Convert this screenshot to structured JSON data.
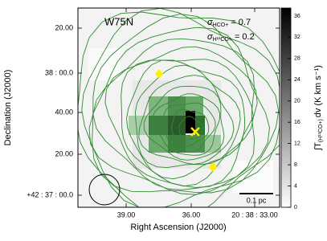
{
  "panel": {
    "label": "W75N",
    "sigma_lines": [
      [
        "σ",
        "HCO+",
        "= 0.7"
      ],
      [
        "σ",
        "H¹³CO+",
        "= 0.2"
      ]
    ],
    "scale_bar": "0.1 pc"
  },
  "x_axis": {
    "label": "Right Ascension (J2000)",
    "ticks": [
      "39.00",
      "36.00",
      "20 : 38 : 33.00"
    ]
  },
  "y_axis": {
    "label": "Declination (J2000)",
    "ticks": [
      "20.00",
      "38 : 00.0",
      "40.00",
      "20.00",
      "+42 : 37 : 00.0"
    ]
  },
  "colorbar": {
    "label": [
      "∫T",
      "(H¹³CO+)",
      "dv (K km s⁻¹)"
    ],
    "lim": [
      0,
      37.5
    ],
    "ticks": [
      0,
      4,
      8,
      12,
      16,
      20,
      24,
      28,
      32,
      36
    ]
  }
}
